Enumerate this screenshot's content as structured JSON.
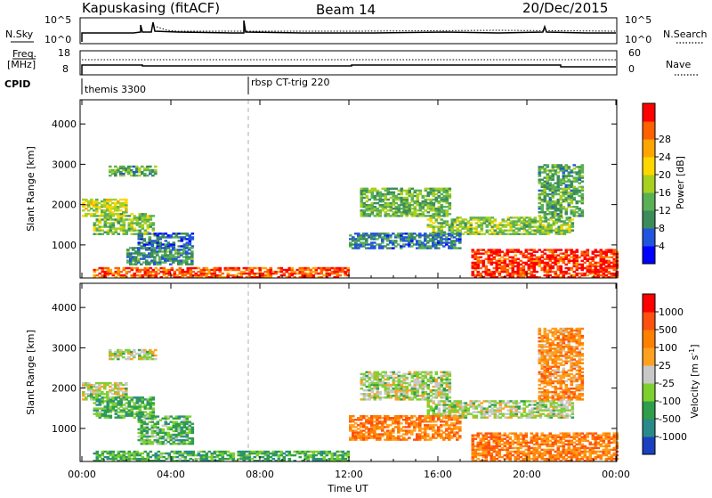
{
  "header": {
    "station": "Kapuskasing (fitACF)",
    "beam": "Beam 14",
    "date": "20/Dec/2015"
  },
  "noise_panel": {
    "left_label": "N.Sky",
    "right_label": "N.Search",
    "left_ticks": [
      "10^5",
      "10^0"
    ],
    "right_ticks": [
      "10^5",
      "10^0"
    ]
  },
  "freq_panel": {
    "left_label": "Freq.",
    "left_unit": "[MHz]",
    "right_label": "Nave",
    "left_ticks": [
      "18",
      "8"
    ],
    "right_ticks": [
      "60",
      "0"
    ]
  },
  "cpid": {
    "label": "CPID",
    "segments": [
      {
        "name": "themis 3300",
        "start_hour": 0
      },
      {
        "name": "rbsp CT-trig 220",
        "start_hour": 7.5
      }
    ]
  },
  "chart_data": [
    {
      "type": "heatmap",
      "title": "",
      "xlabel": "Time UT",
      "ylabel": "Slant Range [km]",
      "x_ticks": [
        "00:00",
        "04:00",
        "08:00",
        "12:00",
        "16:00",
        "20:00",
        "00:00"
      ],
      "xlim_hours": [
        0,
        24
      ],
      "ylim": [
        180,
        4600
      ],
      "y_ticks": [
        1000,
        2000,
        3000,
        4000
      ],
      "colorbar": {
        "label": "Power [dB]",
        "ticks": [
          "4",
          "8",
          "12",
          "16",
          "20",
          "24",
          "28"
        ],
        "colors": [
          "#0000ff",
          "#2255dd",
          "#3b8c5a",
          "#5ab055",
          "#a8d020",
          "#ffd700",
          "#ffa500",
          "#ff6000",
          "#ff0000"
        ]
      },
      "regions": [
        {
          "t0": 0.0,
          "t1": 2.0,
          "r0": 1700,
          "r1": 2150,
          "level": 0.55
        },
        {
          "t0": 0.5,
          "t1": 3.2,
          "r0": 1250,
          "r1": 1750,
          "level": 0.45
        },
        {
          "t0": 1.2,
          "t1": 3.3,
          "r0": 2700,
          "r1": 2950,
          "level": 0.35
        },
        {
          "t0": 2.5,
          "t1": 5.0,
          "r0": 900,
          "r1": 1300,
          "level": 0.2
        },
        {
          "t0": 2.0,
          "t1": 5.0,
          "r0": 500,
          "r1": 950,
          "level": 0.3
        },
        {
          "t0": 0.5,
          "t1": 12.0,
          "r0": 180,
          "r1": 420,
          "level": 0.85
        },
        {
          "t0": 12.5,
          "t1": 16.5,
          "r0": 1700,
          "r1": 2400,
          "level": 0.4
        },
        {
          "t0": 15.5,
          "t1": 22.0,
          "r0": 1250,
          "r1": 1700,
          "level": 0.45
        },
        {
          "t0": 12.0,
          "t1": 17.0,
          "r0": 900,
          "r1": 1300,
          "level": 0.25
        },
        {
          "t0": 17.5,
          "t1": 24.0,
          "r0": 180,
          "r1": 900,
          "level": 0.9
        },
        {
          "t0": 20.5,
          "t1": 22.5,
          "r0": 1700,
          "r1": 3000,
          "level": 0.35
        }
      ]
    },
    {
      "type": "heatmap",
      "title": "",
      "xlabel": "Time UT",
      "ylabel": "Slant Range [km]",
      "x_ticks": [
        "00:00",
        "04:00",
        "08:00",
        "12:00",
        "16:00",
        "20:00",
        "00:00"
      ],
      "xlim_hours": [
        0,
        24
      ],
      "ylim": [
        180,
        4600
      ],
      "y_ticks": [
        1000,
        2000,
        3000,
        4000
      ],
      "colorbar": {
        "label": "Velocity [m s-1]",
        "ticks": [
          "1000",
          "500",
          "100",
          "25",
          "-25",
          "-100",
          "-500",
          "-1000"
        ],
        "colors": [
          "#1a40c0",
          "#2a8a8a",
          "#2e9e4a",
          "#7ed030",
          "#c8c8c8",
          "#ffa020",
          "#ff8000",
          "#ff5010",
          "#ff0000"
        ]
      },
      "regions": [
        {
          "t0": 0.0,
          "t1": 2.0,
          "r0": 1700,
          "r1": 2150,
          "level": 0.45
        },
        {
          "t0": 0.5,
          "t1": 3.2,
          "r0": 1250,
          "r1": 1750,
          "level": 0.3
        },
        {
          "t0": 1.2,
          "t1": 3.3,
          "r0": 2700,
          "r1": 2950,
          "level": 0.45
        },
        {
          "t0": 2.5,
          "t1": 5.0,
          "r0": 600,
          "r1": 1300,
          "level": 0.35
        },
        {
          "t0": 0.5,
          "t1": 12.0,
          "r0": 180,
          "r1": 420,
          "level": 0.3
        },
        {
          "t0": 12.5,
          "t1": 16.5,
          "r0": 1700,
          "r1": 2400,
          "level": 0.45
        },
        {
          "t0": 15.5,
          "t1": 22.0,
          "r0": 1250,
          "r1": 1700,
          "level": 0.45
        },
        {
          "t0": 12.0,
          "t1": 17.0,
          "r0": 700,
          "r1": 1300,
          "level": 0.72
        },
        {
          "t0": 17.5,
          "t1": 24.0,
          "r0": 180,
          "r1": 900,
          "level": 0.72
        },
        {
          "t0": 20.5,
          "t1": 22.5,
          "r0": 1700,
          "r1": 3500,
          "level": 0.68
        }
      ]
    }
  ]
}
